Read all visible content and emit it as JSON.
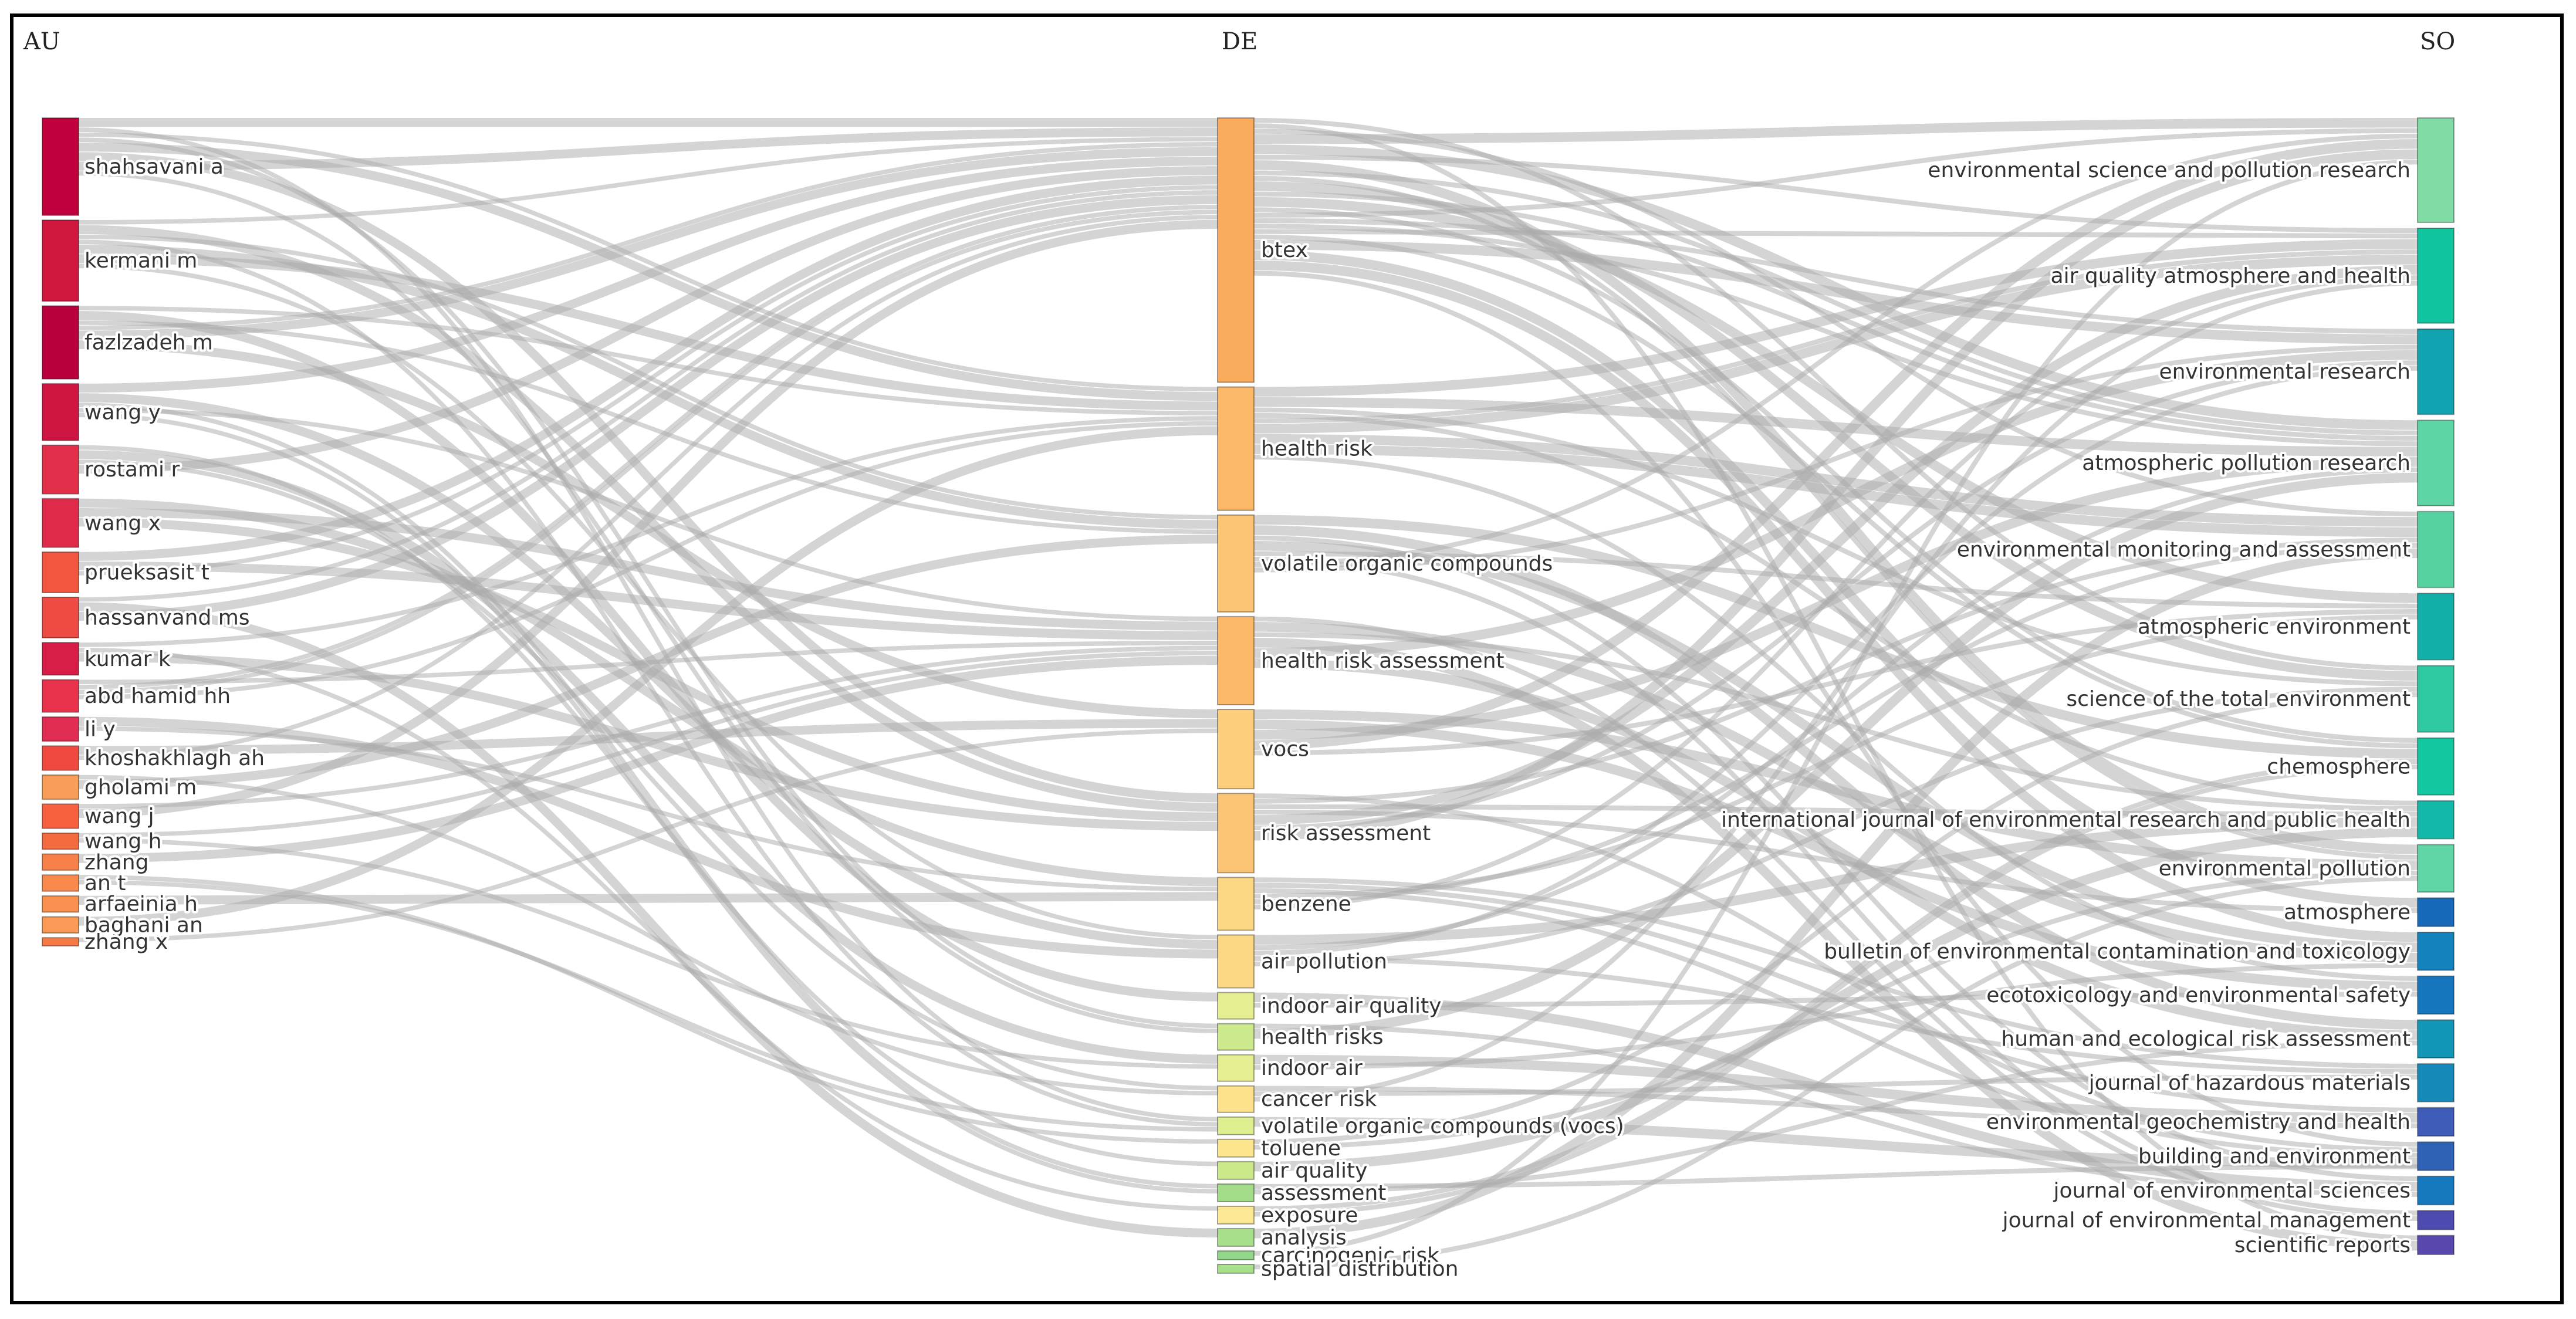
{
  "columns": {
    "au": "AU",
    "de": "DE",
    "so": "SO"
  },
  "au_nodes": [
    {
      "label": "shahsavani a",
      "value": 12,
      "color": "#c0003c"
    },
    {
      "label": "kermani m",
      "value": 10,
      "color": "#d0173e"
    },
    {
      "label": "fazlzadeh m",
      "value": 9,
      "color": "#b8003d"
    },
    {
      "label": "wang y",
      "value": 7,
      "color": "#cf1642"
    },
    {
      "label": "rostami r",
      "value": 6,
      "color": "#e3304a"
    },
    {
      "label": "wang x",
      "value": 6,
      "color": "#e02a4a"
    },
    {
      "label": "prueksasit t",
      "value": 5,
      "color": "#f2563e"
    },
    {
      "label": "hassanvand ms",
      "value": 5,
      "color": "#ee4b45"
    },
    {
      "label": "kumar k",
      "value": 4,
      "color": "#d81e46"
    },
    {
      "label": "abd hamid hh",
      "value": 4,
      "color": "#e9334c"
    },
    {
      "label": "li y",
      "value": 3,
      "color": "#e12d52"
    },
    {
      "label": "khoshakhlagh ah",
      "value": 3,
      "color": "#f04a40"
    },
    {
      "label": "gholami m",
      "value": 3,
      "color": "#f99e58"
    },
    {
      "label": "wang j",
      "value": 3,
      "color": "#f7613f"
    },
    {
      "label": "wang h",
      "value": 2,
      "color": "#f36b3f"
    },
    {
      "label": "zhang",
      "value": 2,
      "color": "#f78149"
    },
    {
      "label": "an t",
      "value": 2,
      "color": "#f9894c"
    },
    {
      "label": "arfaeinia h",
      "value": 2,
      "color": "#fa9150"
    },
    {
      "label": "baghani an",
      "value": 2,
      "color": "#f99a57"
    },
    {
      "label": "zhang x",
      "value": 1,
      "color": "#f57a45"
    }
  ],
  "de_nodes": [
    {
      "label": "btex",
      "value": 30,
      "color": "#fbab5e"
    },
    {
      "label": "health risk",
      "value": 14,
      "color": "#fbb869"
    },
    {
      "label": "volatile organic compounds",
      "value": 11,
      "color": "#fcc473"
    },
    {
      "label": "health risk assessment",
      "value": 10,
      "color": "#fbb869"
    },
    {
      "label": "vocs",
      "value": 9,
      "color": "#fdce7c"
    },
    {
      "label": "risk assessment",
      "value": 9,
      "color": "#fcc575"
    },
    {
      "label": "benzene",
      "value": 6,
      "color": "#fdd884"
    },
    {
      "label": "air pollution",
      "value": 6,
      "color": "#fdd884"
    },
    {
      "label": "indoor air quality",
      "value": 3,
      "color": "#e5ee91"
    },
    {
      "label": "health risks",
      "value": 3,
      "color": "#cde98e"
    },
    {
      "label": "indoor air",
      "value": 3,
      "color": "#e5ee91"
    },
    {
      "label": "cancer risk",
      "value": 3,
      "color": "#fde28b"
    },
    {
      "label": "volatile organic compounds (vocs)",
      "value": 2,
      "color": "#ddef8f"
    },
    {
      "label": "toluene",
      "value": 2,
      "color": "#fde58d"
    },
    {
      "label": "air quality",
      "value": 2,
      "color": "#cbe98b"
    },
    {
      "label": "assessment",
      "value": 2,
      "color": "#a3dd8a"
    },
    {
      "label": "exposure",
      "value": 2,
      "color": "#fde893"
    },
    {
      "label": "analysis",
      "value": 2,
      "color": "#a8df8a"
    },
    {
      "label": "carcinogenic risk",
      "value": 1,
      "color": "#92d689"
    },
    {
      "label": "spatial distribution",
      "value": 1,
      "color": "#a8df8a"
    }
  ],
  "so_nodes": [
    {
      "label": "environmental science and pollution research",
      "value": 11,
      "color": "#80dba5"
    },
    {
      "label": "air quality atmosphere and health",
      "value": 10,
      "color": "#10c4a0"
    },
    {
      "label": "environmental research",
      "value": 9,
      "color": "#12a3b0"
    },
    {
      "label": "atmospheric pollution research",
      "value": 9,
      "color": "#5ed5a5"
    },
    {
      "label": "environmental monitoring and assessment",
      "value": 8,
      "color": "#56d2a0"
    },
    {
      "label": "atmospheric environment",
      "value": 7,
      "color": "#11afa8"
    },
    {
      "label": "science of the total environment",
      "value": 7,
      "color": "#2ec9a0"
    },
    {
      "label": "chemosphere",
      "value": 6,
      "color": "#12c69f"
    },
    {
      "label": "international journal of environmental research and public health",
      "value": 4,
      "color": "#14b8a8"
    },
    {
      "label": "environmental pollution",
      "value": 5,
      "color": "#60d6a6"
    },
    {
      "label": "atmosphere",
      "value": 3,
      "color": "#1668b8"
    },
    {
      "label": "bulletin of environmental contamination and toxicology",
      "value": 4,
      "color": "#1383be"
    },
    {
      "label": "ecotoxicology and environmental safety",
      "value": 4,
      "color": "#1575bd"
    },
    {
      "label": "human and ecological risk assessment",
      "value": 4,
      "color": "#1296b5"
    },
    {
      "label": "journal of hazardous materials",
      "value": 4,
      "color": "#158ab8"
    },
    {
      "label": "environmental geochemistry and health",
      "value": 3,
      "color": "#3f5db8"
    },
    {
      "label": "building and environment",
      "value": 3,
      "color": "#2f61b4"
    },
    {
      "label": "journal of environmental sciences",
      "value": 3,
      "color": "#1779bd"
    },
    {
      "label": "journal of environmental management",
      "value": 2,
      "color": "#4d4bb0"
    },
    {
      "label": "scientific reports",
      "value": 2,
      "color": "#5a47ad"
    }
  ]
}
